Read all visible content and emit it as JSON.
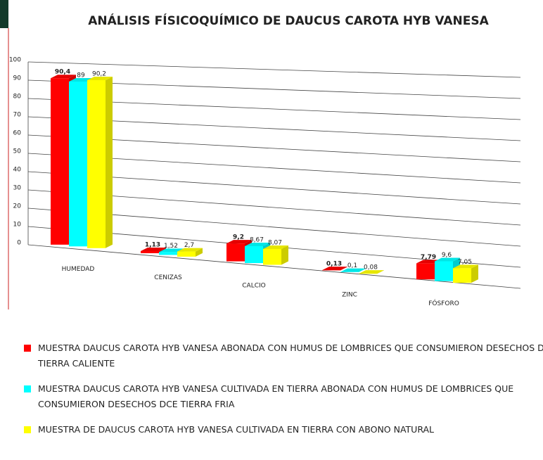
{
  "chart_data": {
    "type": "bar",
    "title": "ANÁLISIS FÍSICOQUÍMICO DE DAUCUS CAROTA HYB VANESA",
    "categories": [
      "HUMEDAD",
      "CENIZAS",
      "CALCIO",
      "ZINC",
      "FÓSFORO"
    ],
    "series": [
      {
        "name": "MUESTRA DAUCUS CAROTA HYB VANESA ABONADA CON HUMUS DE LOMBRICES QUE CONSUMIERON DESECHOS DE TIERRA CALIENTE",
        "color": "#ff0000",
        "values": [
          90.4,
          1.13,
          9.2,
          0.13,
          7.79
        ],
        "value_labels": [
          "90,4",
          "1,13",
          "9,2",
          "0,13",
          "7,79"
        ]
      },
      {
        "name": "MUESTRA DAUCUS CAROTA HYB VANESA CULTIVADA EN TIERRA ABONADA CON HUMUS DE LOMBRICES QUE CONSUMIERON DESECHOS DCE TIERRA FRIA",
        "color": "#00ffff",
        "values": [
          89,
          1.52,
          8.67,
          0.1,
          9.6
        ],
        "value_labels": [
          "89",
          "1,52",
          "8,67",
          "0,1",
          "9,6"
        ]
      },
      {
        "name": "MUESTRA DE DAUCUS CAROTA HYB VANESA CULTIVADA EN TIERRA CON ABONO NATURAL",
        "color": "#ffff00",
        "values": [
          90.2,
          2.7,
          8.07,
          0.08,
          7.05
        ],
        "value_labels": [
          "90,2",
          "2,7",
          "8,07",
          "0,08",
          "7,05"
        ]
      }
    ],
    "ylim": [
      0,
      100
    ],
    "yticks": [
      0,
      10,
      20,
      30,
      40,
      50,
      60,
      70,
      80,
      90,
      100
    ],
    "grid": true
  }
}
